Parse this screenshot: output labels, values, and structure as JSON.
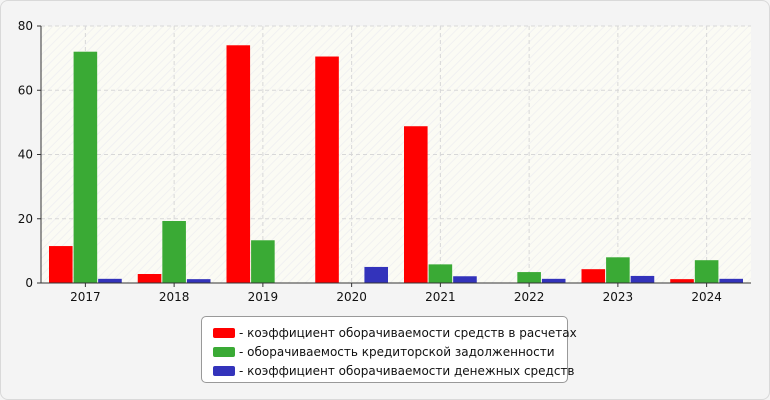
{
  "chart_data": {
    "type": "bar",
    "categories": [
      "2017",
      "2018",
      "2019",
      "2020",
      "2021",
      "2022",
      "2023",
      "2024"
    ],
    "series": [
      {
        "name": "- коэффициент оборачиваемости средств в расчетах",
        "color": "#ff0000",
        "values": [
          11.5,
          2.8,
          74,
          70.5,
          48.8,
          0,
          4.3,
          1.2
        ]
      },
      {
        "name": "- оборачиваемость кредиторской задолженности",
        "color": "#3aaa35",
        "values": [
          72,
          19.3,
          13.3,
          0,
          5.8,
          3.4,
          8,
          7.1
        ]
      },
      {
        "name": "- коэффициент оборачиваемости денежных средств",
        "color": "#3333bb",
        "values": [
          1.3,
          1.2,
          0,
          5,
          2.1,
          1.3,
          2.2,
          1.3
        ]
      }
    ],
    "ylim": [
      0,
      80
    ],
    "yticks": [
      "0",
      "20",
      "40",
      "60",
      "80"
    ],
    "grid": true,
    "legend_position": "bottom"
  }
}
